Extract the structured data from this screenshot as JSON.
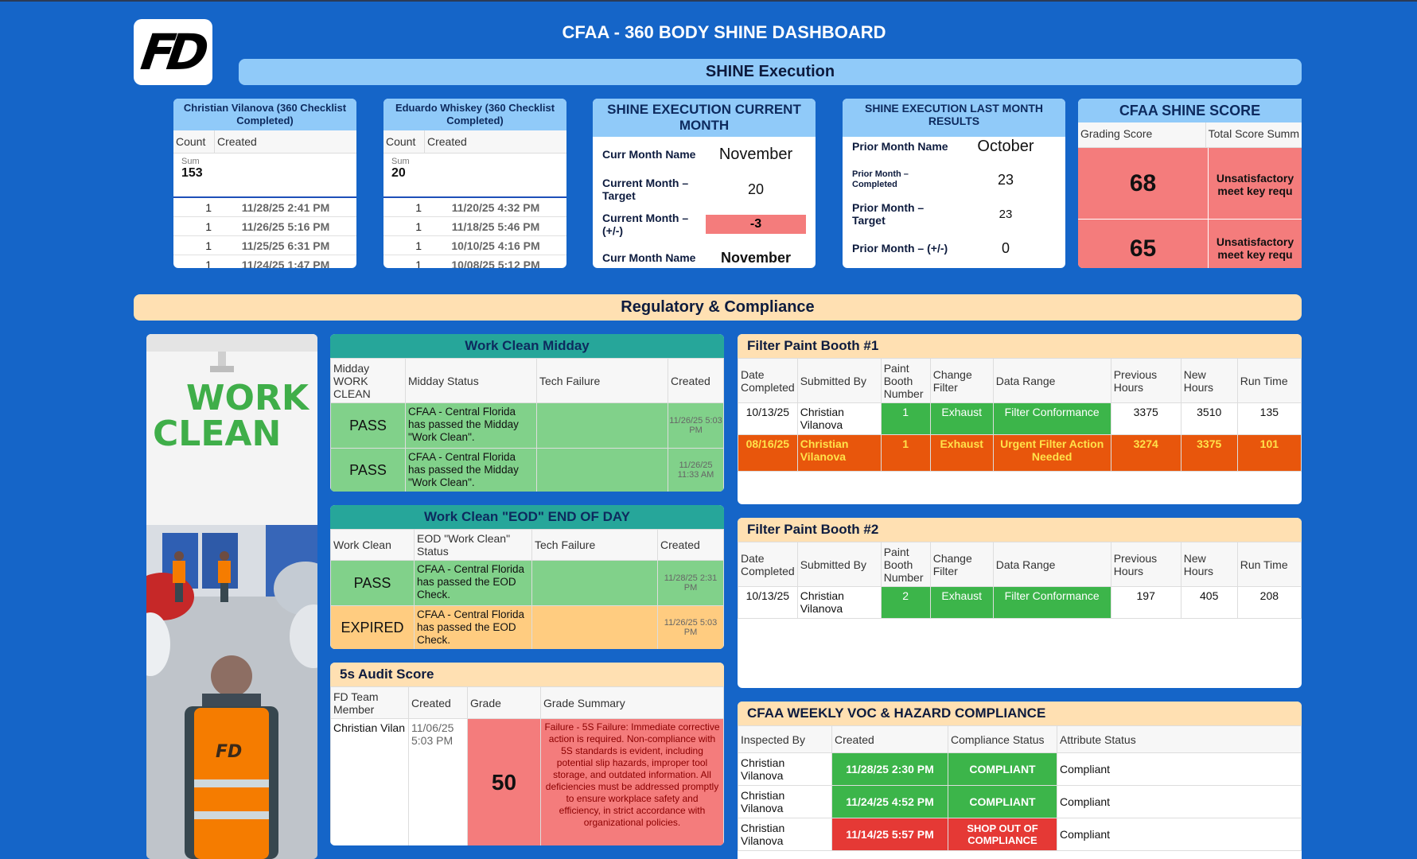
{
  "header": {
    "logo_text": "FD",
    "title": "CFAA - 360 BODY SHINE DASHBOARD",
    "banner_execution": "SHINE Execution",
    "banner_regulatory": "Regulatory & Compliance"
  },
  "list_cards": [
    {
      "title": "Christian Vilanova (360 Checklist Completed)",
      "col_count": "Count",
      "col_created": "Created",
      "sum_label": "Sum",
      "sum_value": "153",
      "rows": [
        {
          "count": "1",
          "created": "11/28/25 2:41 PM"
        },
        {
          "count": "1",
          "created": "11/26/25 5:16 PM"
        },
        {
          "count": "1",
          "created": "11/25/25 6:31 PM"
        },
        {
          "count": "1",
          "created": "11/24/25 1:47 PM"
        }
      ]
    },
    {
      "title": "Eduardo Whiskey (360 Checklist Completed)",
      "col_count": "Count",
      "col_created": "Created",
      "sum_label": "Sum",
      "sum_value": "20",
      "rows": [
        {
          "count": "1",
          "created": "11/20/25 4:32 PM"
        },
        {
          "count": "1",
          "created": "11/18/25 5:46 PM"
        },
        {
          "count": "1",
          "created": "10/10/25 4:16 PM"
        },
        {
          "count": "1",
          "created": "10/08/25 5:12 PM"
        }
      ]
    }
  ],
  "current_month": {
    "title": "SHINE EXECUTION CURRENT MONTH",
    "rows": [
      {
        "key": "Curr Month Name",
        "value": "November"
      },
      {
        "key": "Current Month – Target",
        "value": "20"
      },
      {
        "key": "Current Month – (+/-)",
        "value": "-3"
      },
      {
        "key": "Curr Month Name",
        "value": "November"
      }
    ]
  },
  "last_month": {
    "title": "SHINE EXECUTION LAST MONTH RESULTS",
    "rows": [
      {
        "key": "Prior Month Name",
        "value": "October"
      },
      {
        "key": "Prior Month – Completed",
        "value": "23"
      },
      {
        "key": "Prior Month – Target",
        "value": "23"
      },
      {
        "key": "Prior Month – (+/-)",
        "value": "0"
      }
    ]
  },
  "shine_score": {
    "title": "CFAA SHINE SCORE",
    "col_grading": "Grading Score",
    "col_total": "Total Score Summ",
    "rows": [
      {
        "grade": "68",
        "summary": "Unsatisfactory",
        "summary2": "meet key requ"
      },
      {
        "grade": "65",
        "summary": "Unsatisfactory",
        "summary2": "meet key requ"
      }
    ]
  },
  "work_clean_image": {
    "line1": "WORK",
    "line2": "CLEAN",
    "vest_logo": "FD"
  },
  "midday": {
    "title": "Work Clean Midday",
    "headers": [
      "Midday WORK CLEAN",
      "Midday Status",
      "Tech Failure",
      "Created"
    ],
    "rows": [
      {
        "result": "PASS",
        "status": "CFAA - Central Florida has passed the Midday \"Work Clean\".",
        "tech": "",
        "created": "11/26/25 5:03 PM"
      },
      {
        "result": "PASS",
        "status": "CFAA - Central Florida has passed the Midday \"Work Clean\".",
        "tech": "",
        "created": "11/26/25 11:33 AM"
      }
    ]
  },
  "eod": {
    "title": "Work Clean \"EOD\" END OF DAY",
    "headers": [
      "Work Clean",
      "EOD \"Work Clean\" Status",
      "Tech Failure",
      "Created"
    ],
    "rows": [
      {
        "result": "PASS",
        "status": "CFAA - Central Florida has passed the EOD Check.",
        "tech": "",
        "created": "11/28/25 2:31 PM"
      },
      {
        "result": "EXPIRED",
        "status": "CFAA - Central Florida has passed the EOD Check.",
        "tech": "",
        "created": "11/26/25 5:03 PM"
      }
    ]
  },
  "audit": {
    "title": "5s Audit Score",
    "headers": [
      "FD Team Member",
      "Created",
      "Grade",
      "Grade Summary"
    ],
    "rows": [
      {
        "member": "Christian Vilan",
        "created": "11/06/25 5:03 PM",
        "grade": "50",
        "summary": "Failure - 5S Failure: Immediate corrective action is required. Non-compliance with 5S standards is evident, including potential slip hazards, improper tool storage, and outdated information. All deficiencies must be addressed promptly to ensure workplace safety and efficiency, in strict accordance with organizational policies."
      }
    ]
  },
  "booth1": {
    "title": "Filter Paint Booth #1",
    "headers": [
      "Date Completed",
      "Submitted By",
      "Paint Booth Number",
      "Change Filter",
      "Data Range",
      "Previous Hours",
      "New Hours",
      "Run Time"
    ],
    "rows": [
      {
        "date": "10/13/25",
        "by": "Christian Vilanova",
        "booth": "1",
        "filter": "Exhaust",
        "range": "Filter Conformance",
        "prev": "3375",
        "new": "3510",
        "run": "135"
      },
      {
        "date": "08/16/25",
        "by": "Christian Vilanova",
        "booth": "1",
        "filter": "Exhaust",
        "range": "Urgent Filter Action Needed",
        "prev": "3274",
        "new": "3375",
        "run": "101"
      }
    ]
  },
  "booth2": {
    "title": "Filter Paint Booth #2",
    "headers": [
      "Date Completed",
      "Submitted By",
      "Paint Booth Number",
      "Change Filter",
      "Data Range",
      "Previous Hours",
      "New Hours",
      "Run Time"
    ],
    "rows": [
      {
        "date": "10/13/25",
        "by": "Christian Vilanova",
        "booth": "2",
        "filter": "Exhaust",
        "range": "Filter Conformance",
        "prev": "197",
        "new": "405",
        "run": "208"
      }
    ]
  },
  "voc": {
    "title": "CFAA WEEKLY VOC & HAZARD COMPLIANCE",
    "headers": [
      "Inspected By",
      "Created",
      "Compliance Status",
      "Attribute Status"
    ],
    "rows": [
      {
        "by": "Christian Vilanova",
        "created": "11/28/25 2:30 PM",
        "status": "COMPLIANT",
        "attr": "Compliant"
      },
      {
        "by": "Christian Vilanova",
        "created": "11/24/25 4:52 PM",
        "status": "COMPLIANT",
        "attr": "Compliant"
      },
      {
        "by": "Christian Vilanova",
        "created": "11/14/25 5:57 PM",
        "status": "SHOP OUT OF COMPLIANCE",
        "attr": "Compliant"
      }
    ]
  },
  "colors": {
    "background": "#1565c8",
    "banner_blue": "#90caf9",
    "banner_tan": "#ffe0b2",
    "pass": "#81d18a",
    "fail": "#f47c7c",
    "compliant": "#3cb54a",
    "urgent": "#e8560c"
  }
}
